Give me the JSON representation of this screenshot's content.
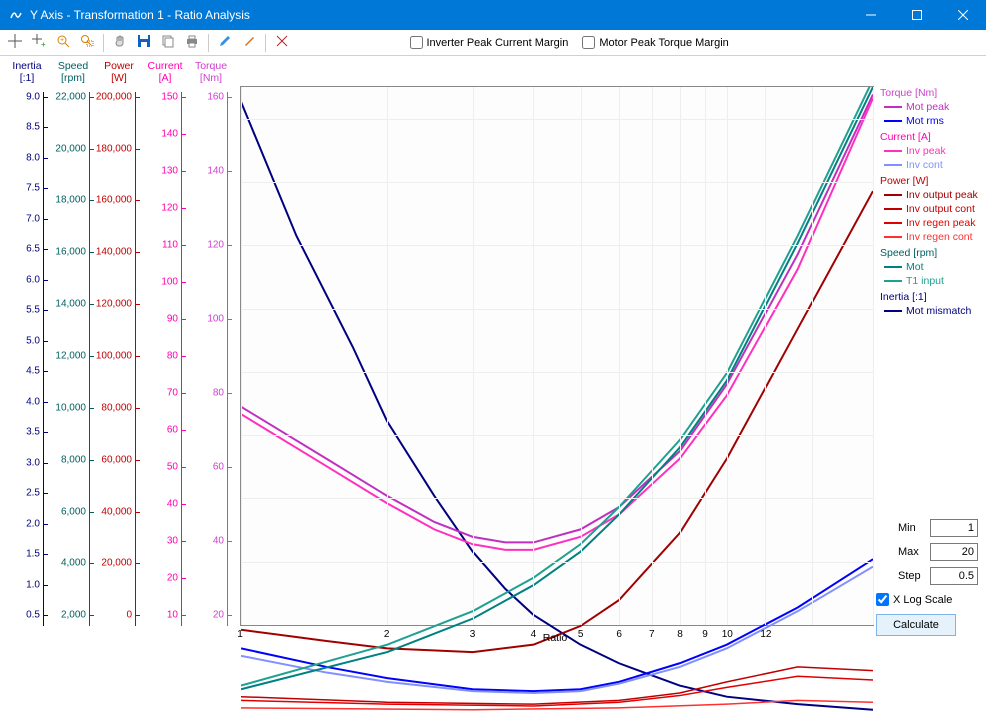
{
  "window": {
    "title": "Y Axis - Transformation 1 - Ratio Analysis"
  },
  "toolbar": {
    "checkbox1": {
      "label": "Inverter Peak Current Margin",
      "checked": false
    },
    "checkbox2": {
      "label": "Motor Peak Torque Margin",
      "checked": false
    }
  },
  "axes": [
    {
      "name": "Inertia",
      "unit": "[:1]",
      "color": "#000080",
      "ticks": [
        "9.0",
        "8.5",
        "8.0",
        "7.5",
        "7.0",
        "6.5",
        "6.0",
        "5.5",
        "5.0",
        "4.5",
        "4.0",
        "3.5",
        "3.0",
        "2.5",
        "2.0",
        "1.5",
        "1.0",
        "0.5"
      ]
    },
    {
      "name": "Speed",
      "unit": "[rpm]",
      "color": "#006060",
      "ticks": [
        "22,000",
        "20,000",
        "18,000",
        "16,000",
        "14,000",
        "12,000",
        "10,000",
        "8,000",
        "6,000",
        "4,000",
        "2,000"
      ]
    },
    {
      "name": "Power",
      "unit": "[W]",
      "color": "#c00000",
      "ticks": [
        "200,000",
        "180,000",
        "160,000",
        "140,000",
        "120,000",
        "100,000",
        "80,000",
        "60,000",
        "40,000",
        "20,000",
        "0"
      ]
    },
    {
      "name": "Current",
      "unit": "[A]",
      "color": "#ff00b0",
      "ticks": [
        "150",
        "140",
        "130",
        "120",
        "110",
        "100",
        "90",
        "80",
        "70",
        "60",
        "50",
        "40",
        "30",
        "20",
        "10"
      ]
    },
    {
      "name": "Torque",
      "unit": "[Nm]",
      "color": "#d040d0",
      "ticks": [
        "160",
        "140",
        "120",
        "100",
        "80",
        "60",
        "40",
        "20"
      ]
    }
  ],
  "xaxis": {
    "title": "Ratio",
    "ticks": [
      {
        "v": 1,
        "l": "1"
      },
      {
        "v": 2,
        "l": "2"
      },
      {
        "v": 3,
        "l": "3"
      },
      {
        "v": 4,
        "l": "4"
      },
      {
        "v": 5,
        "l": "5"
      },
      {
        "v": 6,
        "l": "6"
      },
      {
        "v": 7,
        "l": "7"
      },
      {
        "v": 8,
        "l": "8"
      },
      {
        "v": 9,
        "l": "9"
      },
      {
        "v": 10,
        "l": "10"
      },
      {
        "v": 12,
        "l": "12"
      },
      {
        "v": 15,
        "l": ""
      },
      {
        "v": 20,
        "l": ""
      }
    ],
    "xmin": 1,
    "xmax": 20
  },
  "legend": [
    {
      "title": "Torque [Nm]",
      "color": "#d040d0",
      "items": [
        {
          "label": "Mot peak",
          "color": "#c030c0"
        },
        {
          "label": "Mot rms",
          "color": "#0000ff"
        }
      ]
    },
    {
      "title": "Current [A]",
      "color": "#ff00b0",
      "items": [
        {
          "label": "Inv peak",
          "color": "#ff30c0"
        },
        {
          "label": "Inv cont",
          "color": "#8090ff"
        }
      ]
    },
    {
      "title": "Power [W]",
      "color": "#c00000",
      "items": [
        {
          "label": "Inv output peak",
          "color": "#a00000"
        },
        {
          "label": "Inv output cont",
          "color": "#c00000"
        },
        {
          "label": "Inv regen peak",
          "color": "#e00000"
        },
        {
          "label": "Inv regen cont",
          "color": "#ff3030"
        }
      ]
    },
    {
      "title": "Speed [rpm]",
      "color": "#006060",
      "items": [
        {
          "label": "Mot",
          "color": "#008080"
        },
        {
          "label": "T1 input",
          "color": "#20a090"
        }
      ]
    },
    {
      "title": "Inertia [:1]",
      "color": "#000080",
      "items": [
        {
          "label": "Mot mismatch",
          "color": "#000080"
        }
      ]
    }
  ],
  "controls": {
    "min_label": "Min",
    "min_value": "1",
    "max_label": "Max",
    "max_value": "20",
    "step_label": "Step",
    "step_value": "0.5",
    "xlog_label": "X Log Scale",
    "xlog_checked": true,
    "calc_label": "Calculate"
  },
  "curves": [
    {
      "name": "mot-mismatch",
      "color": "#000080",
      "w": 2,
      "pts": [
        [
          1,
          166
        ],
        [
          1.3,
          130
        ],
        [
          1.7,
          100
        ],
        [
          2,
          80
        ],
        [
          2.5,
          60
        ],
        [
          3,
          45
        ],
        [
          3.5,
          35
        ],
        [
          4,
          28
        ],
        [
          5,
          20
        ],
        [
          6,
          15
        ],
        [
          8,
          9
        ],
        [
          10,
          6
        ],
        [
          14,
          4
        ],
        [
          20,
          2.5
        ]
      ]
    },
    {
      "name": "mot-peak",
      "color": "#c030c0",
      "w": 2,
      "pts": [
        [
          1,
          84
        ],
        [
          1.5,
          70
        ],
        [
          2,
          60
        ],
        [
          2.5,
          53
        ],
        [
          3,
          49
        ],
        [
          3.5,
          47.5
        ],
        [
          4,
          47.5
        ],
        [
          5,
          51
        ],
        [
          6,
          57
        ],
        [
          8,
          72
        ],
        [
          10,
          90
        ],
        [
          14,
          125
        ],
        [
          20,
          168
        ]
      ]
    },
    {
      "name": "inv-peak",
      "color": "#ff30c0",
      "w": 2,
      "pts": [
        [
          1,
          82
        ],
        [
          1.5,
          68
        ],
        [
          2,
          58
        ],
        [
          2.5,
          51
        ],
        [
          3,
          47
        ],
        [
          3.5,
          45.5
        ],
        [
          4,
          45.5
        ],
        [
          5,
          49
        ],
        [
          6,
          55
        ],
        [
          8,
          70
        ],
        [
          10,
          87
        ],
        [
          14,
          121
        ],
        [
          20,
          167
        ]
      ]
    },
    {
      "name": "mot-rms",
      "color": "#0000ff",
      "w": 2,
      "pts": [
        [
          1,
          19
        ],
        [
          1.5,
          14
        ],
        [
          2,
          11
        ],
        [
          3,
          8
        ],
        [
          4,
          7.5
        ],
        [
          5,
          8
        ],
        [
          6,
          10
        ],
        [
          8,
          15
        ],
        [
          10,
          20
        ],
        [
          14,
          30
        ],
        [
          20,
          43
        ]
      ]
    },
    {
      "name": "inv-cont",
      "color": "#8090ff",
      "w": 2,
      "pts": [
        [
          1,
          17
        ],
        [
          1.5,
          12.5
        ],
        [
          2,
          10
        ],
        [
          3,
          7.5
        ],
        [
          4,
          7
        ],
        [
          5,
          7.5
        ],
        [
          6,
          9.5
        ],
        [
          8,
          14
        ],
        [
          10,
          19
        ],
        [
          14,
          29
        ],
        [
          20,
          41
        ]
      ]
    },
    {
      "name": "inv-output-peak",
      "color": "#a00000",
      "w": 2,
      "pts": [
        [
          1,
          24
        ],
        [
          1.5,
          21
        ],
        [
          2,
          19
        ],
        [
          3,
          18
        ],
        [
          4,
          20
        ],
        [
          5,
          25
        ],
        [
          6,
          32
        ],
        [
          8,
          50
        ],
        [
          10,
          70
        ],
        [
          14,
          105
        ],
        [
          20,
          142
        ]
      ]
    },
    {
      "name": "inv-output-cont",
      "color": "#c00000",
      "w": 1.5,
      "pts": [
        [
          1,
          6
        ],
        [
          2,
          4.5
        ],
        [
          4,
          4
        ],
        [
          6,
          5
        ],
        [
          8,
          7
        ],
        [
          10,
          10
        ],
        [
          14,
          14
        ],
        [
          20,
          13
        ]
      ]
    },
    {
      "name": "inv-regen-peak",
      "color": "#e00000",
      "w": 1.5,
      "pts": [
        [
          1,
          5
        ],
        [
          2,
          4
        ],
        [
          4,
          3.5
        ],
        [
          6,
          4.5
        ],
        [
          8,
          6.3
        ],
        [
          10,
          8.5
        ],
        [
          14,
          11.5
        ],
        [
          20,
          10.5
        ]
      ]
    },
    {
      "name": "inv-regen-cont",
      "color": "#ff3030",
      "w": 1.5,
      "pts": [
        [
          1,
          3
        ],
        [
          3,
          2.5
        ],
        [
          6,
          3
        ],
        [
          10,
          4
        ],
        [
          14,
          5
        ],
        [
          20,
          4.5
        ]
      ]
    },
    {
      "name": "speed-mot",
      "color": "#008080",
      "w": 2,
      "pts": [
        [
          1,
          8
        ],
        [
          2,
          18
        ],
        [
          3,
          27
        ],
        [
          4,
          36
        ],
        [
          5,
          45
        ],
        [
          6,
          55
        ],
        [
          8,
          73
        ],
        [
          10,
          91
        ],
        [
          14,
          128
        ],
        [
          20,
          170
        ]
      ]
    },
    {
      "name": "speed-t1",
      "color": "#20a090",
      "w": 2,
      "pts": [
        [
          1,
          9
        ],
        [
          2,
          20
        ],
        [
          3,
          29
        ],
        [
          4,
          38
        ],
        [
          5,
          47
        ],
        [
          6,
          57
        ],
        [
          8,
          75
        ],
        [
          10,
          93
        ],
        [
          14,
          130
        ],
        [
          20,
          172
        ]
      ]
    }
  ],
  "y_plot": {
    "min": 0,
    "max": 170
  },
  "toolbar_icons": [
    {
      "name": "crosshair-icon",
      "color": "#555"
    },
    {
      "name": "crosshair-add-icon",
      "color": "#555"
    },
    {
      "name": "zoom-in-icon",
      "color": "#d98000"
    },
    {
      "name": "zoom-rect-icon",
      "color": "#d98000"
    },
    {
      "name": "hand-icon",
      "color": "#888"
    },
    {
      "name": "save-icon",
      "color": "#0060c0"
    },
    {
      "name": "copy-icon",
      "color": "#888"
    },
    {
      "name": "print-icon",
      "color": "#555"
    },
    {
      "name": "edit-icon",
      "color": "#3890e0"
    },
    {
      "name": "brush-icon",
      "color": "#d07020"
    },
    {
      "name": "crossing-icon",
      "color": "#c02020"
    }
  ]
}
